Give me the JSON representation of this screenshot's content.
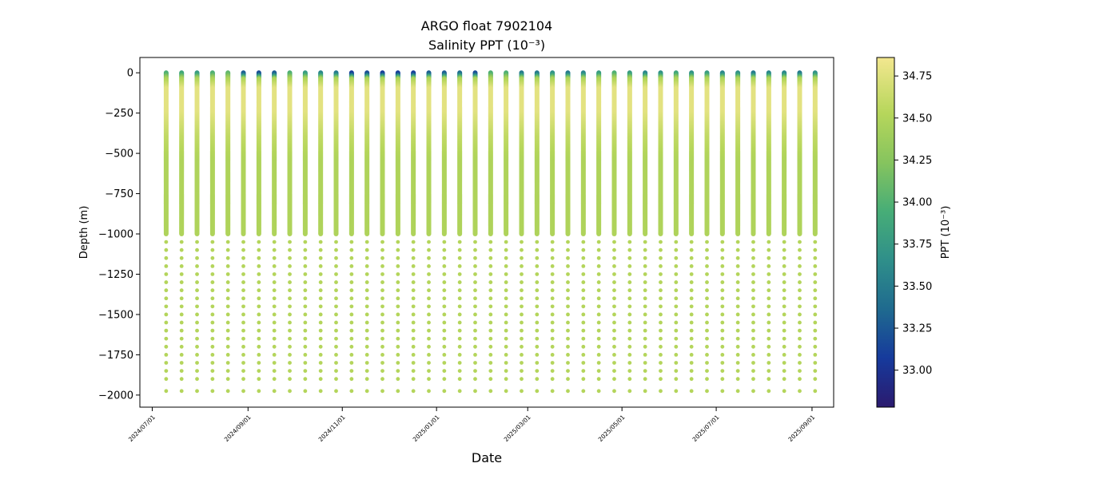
{
  "chart_data": {
    "type": "scatter",
    "title": "ARGO float 7902104",
    "subtitle": "Salinity PPT (10⁻³)",
    "xlabel": "Date",
    "ylabel": "Depth (m)",
    "xlim": [
      "2024-06-23",
      "2025-09-15"
    ],
    "ylim": [
      -2075,
      95
    ],
    "y_ticks": [
      0,
      -250,
      -500,
      -750,
      -1000,
      -1250,
      -1500,
      -1750,
      -2000
    ],
    "y_tick_labels": [
      "0",
      "−250",
      "−500",
      "−750",
      "−1000",
      "−1250",
      "−1500",
      "−1750",
      "−2000"
    ],
    "x_ticks": [
      "2024-07-01",
      "2024-09-01",
      "2024-11-01",
      "2025-01-01",
      "2025-03-01",
      "2025-05-01",
      "2025-07-01",
      "2025-09-01"
    ],
    "x_tick_labels": [
      "2024/07/01",
      "2024/09/01",
      "2024/11/01",
      "2025/01/01",
      "2025/03/01",
      "2025/05/01",
      "2025/07/01",
      "2025/09/01"
    ],
    "grid": false,
    "colorbar": {
      "label": "PPT (10⁻³)",
      "range": [
        32.78,
        34.86
      ],
      "ticks": [
        33.0,
        33.25,
        33.5,
        33.75,
        34.0,
        34.25,
        34.5,
        34.75
      ],
      "tick_labels": [
        "33.00",
        "33.25",
        "33.50",
        "33.75",
        "34.00",
        "34.25",
        "34.50",
        "34.75"
      ],
      "colormap": "haline-like: dark purple → blue → teal → green → yellow-green → pale yellow",
      "colors": [
        "#2b1a6e",
        "#163a9c",
        "#1f6a8f",
        "#2f8f8a",
        "#47ad77",
        "#86c45e",
        "#b6d65b",
        "#f3e78f"
      ]
    },
    "profile_dates": [
      "2024-07-10",
      "2024-07-20",
      "2024-07-30",
      "2024-08-09",
      "2024-08-19",
      "2024-08-29",
      "2024-09-08",
      "2024-09-18",
      "2024-09-28",
      "2024-10-08",
      "2024-10-18",
      "2024-10-28",
      "2024-11-07",
      "2024-11-17",
      "2024-11-27",
      "2024-12-07",
      "2024-12-17",
      "2024-12-27",
      "2025-01-06",
      "2025-01-16",
      "2025-01-26",
      "2025-02-05",
      "2025-02-15",
      "2025-02-25",
      "2025-03-07",
      "2025-03-17",
      "2025-03-27",
      "2025-04-06",
      "2025-04-16",
      "2025-04-26",
      "2025-05-06",
      "2025-05-16",
      "2025-05-26",
      "2025-06-05",
      "2025-06-15",
      "2025-06-25",
      "2025-07-05",
      "2025-07-15",
      "2025-07-25",
      "2025-08-04",
      "2025-08-14",
      "2025-08-24",
      "2025-09-03"
    ],
    "surface_salinity": [
      34.0,
      33.9,
      33.8,
      34.0,
      34.1,
      33.3,
      33.2,
      33.3,
      34.0,
      33.8,
      33.6,
      33.5,
      33.1,
      33.2,
      33.1,
      33.1,
      33.1,
      33.3,
      33.3,
      33.4,
      33.2,
      34.0,
      34.0,
      33.5,
      33.5,
      33.7,
      33.5,
      33.6,
      33.8,
      34.0,
      33.8,
      33.6,
      33.7,
      33.9,
      33.7,
      33.8,
      33.6,
      33.7,
      33.5,
      33.6,
      33.6,
      33.5,
      33.7
    ],
    "vertical_structure": [
      {
        "depth_from": 0,
        "depth_to": -25,
        "salinity": "surface value (33.1–34.1)"
      },
      {
        "depth_from": -25,
        "depth_to": -100,
        "salinity": 34.5
      },
      {
        "depth_from": -100,
        "depth_to": -250,
        "salinity": 34.78
      },
      {
        "depth_from": -250,
        "depth_to": -400,
        "salinity": 34.62
      },
      {
        "depth_from": -400,
        "depth_to": -1000,
        "salinity": 34.52
      },
      {
        "depth_from": -1000,
        "depth_to": -2000,
        "salinity": 34.55
      }
    ],
    "deep_sample_depths": [
      -1050,
      -1100,
      -1150,
      -1200,
      -1250,
      -1300,
      -1350,
      -1400,
      -1450,
      -1500,
      -1550,
      -1600,
      -1650,
      -1700,
      -1750,
      -1800,
      -1850,
      -1900,
      -1975
    ]
  }
}
